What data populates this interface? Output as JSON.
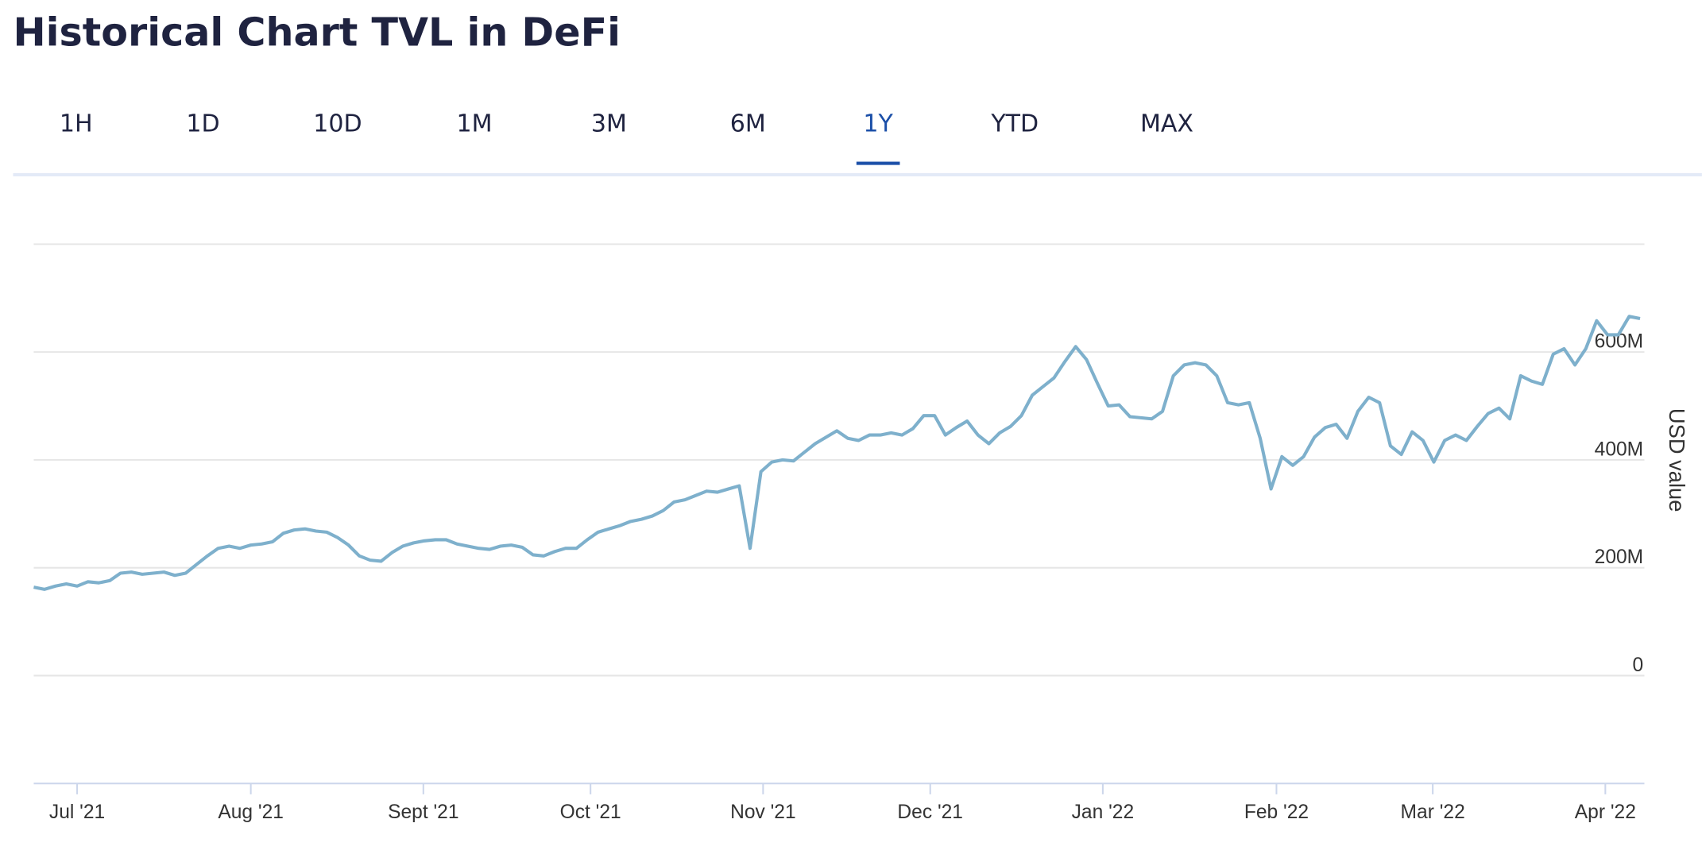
{
  "header": {
    "title": "Historical Chart TVL in DeFi"
  },
  "tabs": {
    "items": [
      "1H",
      "1D",
      "10D",
      "1M",
      "3M",
      "6M",
      "1Y",
      "YTD",
      "MAX"
    ],
    "active": "1Y"
  },
  "chart_data": {
    "type": "line",
    "y_label": "USD value",
    "color": "#7eb0cc",
    "grid": true,
    "values": [
      164,
      160,
      166,
      170,
      166,
      174,
      172,
      176,
      190,
      192,
      188,
      190,
      192,
      186,
      190,
      206,
      222,
      236,
      240,
      236,
      242,
      244,
      248,
      264,
      270,
      272,
      268,
      266,
      256,
      242,
      222,
      214,
      212,
      228,
      240,
      246,
      250,
      252,
      252,
      244,
      240,
      236,
      234,
      240,
      242,
      238,
      224,
      222,
      230,
      236,
      236,
      252,
      266,
      272,
      278,
      286,
      290,
      296,
      306,
      322,
      326,
      334,
      342,
      340,
      346,
      352,
      236,
      378,
      396,
      400,
      398,
      414,
      430,
      442,
      454,
      440,
      436,
      446,
      446,
      450,
      446,
      458,
      482,
      482,
      446,
      460,
      472,
      446,
      430,
      450,
      462,
      482,
      520,
      536,
      552,
      582,
      610,
      586,
      542,
      500,
      502,
      480,
      478,
      476,
      490,
      556,
      576,
      580,
      576,
      556,
      506,
      502,
      506,
      440,
      346,
      406,
      390,
      406,
      442,
      460,
      466,
      440,
      490,
      516,
      506,
      426,
      410,
      452,
      436,
      396,
      436,
      446,
      436,
      462,
      486,
      496,
      476,
      556,
      546,
      540,
      596,
      606,
      576,
      606,
      658,
      632,
      632,
      666,
      662
    ],
    "xlim": [
      0,
      148
    ],
    "xticks": [
      {
        "value": 4,
        "label": "Jul '21"
      },
      {
        "value": 20,
        "label": "Aug '21"
      },
      {
        "value": 35.9,
        "label": "Sept '21"
      },
      {
        "value": 51.3,
        "label": "Oct '21"
      },
      {
        "value": 67.2,
        "label": "Nov '21"
      },
      {
        "value": 82.6,
        "label": "Dec '21"
      },
      {
        "value": 98.5,
        "label": "Jan '22"
      },
      {
        "value": 114.5,
        "label": "Feb '22"
      },
      {
        "value": 128.9,
        "label": "Mar '22"
      },
      {
        "value": 144.8,
        "label": "Apr '22"
      }
    ],
    "ylim": [
      -200,
      800
    ],
    "yticks": [
      0,
      {
        "value": 200,
        "label": "200M"
      },
      {
        "value": 400,
        "label": "400M"
      },
      {
        "value": 600,
        "label": "600M"
      }
    ]
  }
}
